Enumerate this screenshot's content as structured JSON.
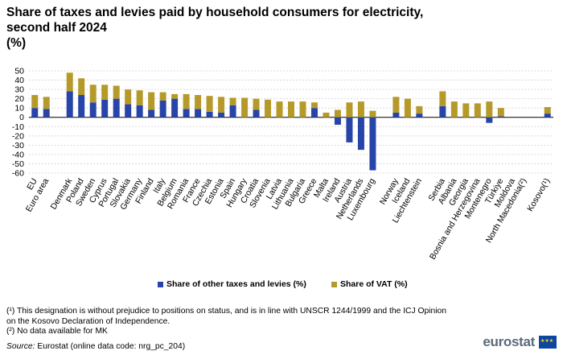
{
  "header": {
    "title": "Share of taxes and levies paid by household consumers for electricity, second half 2024",
    "unit": "(%)"
  },
  "legend": {
    "other_label": "Share of other taxes and levies (%)",
    "vat_label": "Share of VAT (%)"
  },
  "footnotes": {
    "note1": "(¹) This designation is without prejudice to positions on status, and is in line with UNSCR 1244/1999 and the ICJ Opinion on the Kosovo Declaration of Independence.",
    "note2": "(²) No data available for MK"
  },
  "source": {
    "label": "Source:",
    "text": "Eurostat (online data code: nrg_pc_204)"
  },
  "logo": {
    "text": "eurostat"
  },
  "colors": {
    "other": "#2744a8",
    "vat": "#b59a2a",
    "grid": "#d0d0d0",
    "axis": "#000000"
  },
  "chart_data": {
    "type": "bar",
    "stacked": true,
    "ylim": [
      -60,
      50
    ],
    "yticks": [
      50,
      40,
      30,
      20,
      10,
      0,
      -10,
      -20,
      -30,
      -40,
      -50,
      -60
    ],
    "grid": true,
    "legend_position": "bottom",
    "categories": [
      "EU",
      "Euro area",
      "",
      "Denmark",
      "Poland",
      "Sweden",
      "Cyprus",
      "Portugal",
      "Slovakia",
      "Germany",
      "Finland",
      "Italy",
      "Belgium",
      "Romania",
      "France",
      "Czechia",
      "Estonia",
      "Spain",
      "Hungary",
      "Croatia",
      "Slovenia",
      "Latvia",
      "Lithuania",
      "Bulgaria",
      "Greece",
      "Malta",
      "Ireland",
      "Austria",
      "Netherlands",
      "Luxembourg",
      "",
      "Norway",
      "Iceland",
      "Liechtenstein",
      "",
      "Serbia",
      "Albania",
      "Georgia",
      "Bosnia and Herzegovina",
      "Montenegro",
      "Türkiye",
      "Moldova",
      "North Macedonia(²)",
      "",
      "Kosovo(¹)"
    ],
    "series": [
      {
        "name": "Share of other taxes and levies (%)",
        "values": [
          10,
          9,
          null,
          28,
          24,
          16,
          19,
          20,
          14,
          13,
          8,
          18,
          20,
          9,
          9,
          6,
          5,
          13,
          0,
          8,
          0,
          0,
          0,
          0,
          10,
          0,
          -8,
          -27,
          -35,
          -57,
          null,
          5,
          0,
          4,
          null,
          12,
          0,
          0,
          0,
          -6,
          1,
          0,
          null,
          null,
          4
        ]
      },
      {
        "name": "Share of VAT (%)",
        "values": [
          14,
          13,
          null,
          20,
          18,
          19,
          16,
          14,
          16,
          16,
          19,
          9,
          5,
          16,
          15,
          17,
          17,
          8,
          21,
          12,
          19,
          17,
          17,
          17,
          6,
          5,
          8,
          16,
          17,
          7,
          null,
          17,
          20,
          8,
          null,
          16,
          17,
          15,
          15,
          17,
          9,
          0,
          null,
          null,
          7
        ]
      }
    ]
  }
}
